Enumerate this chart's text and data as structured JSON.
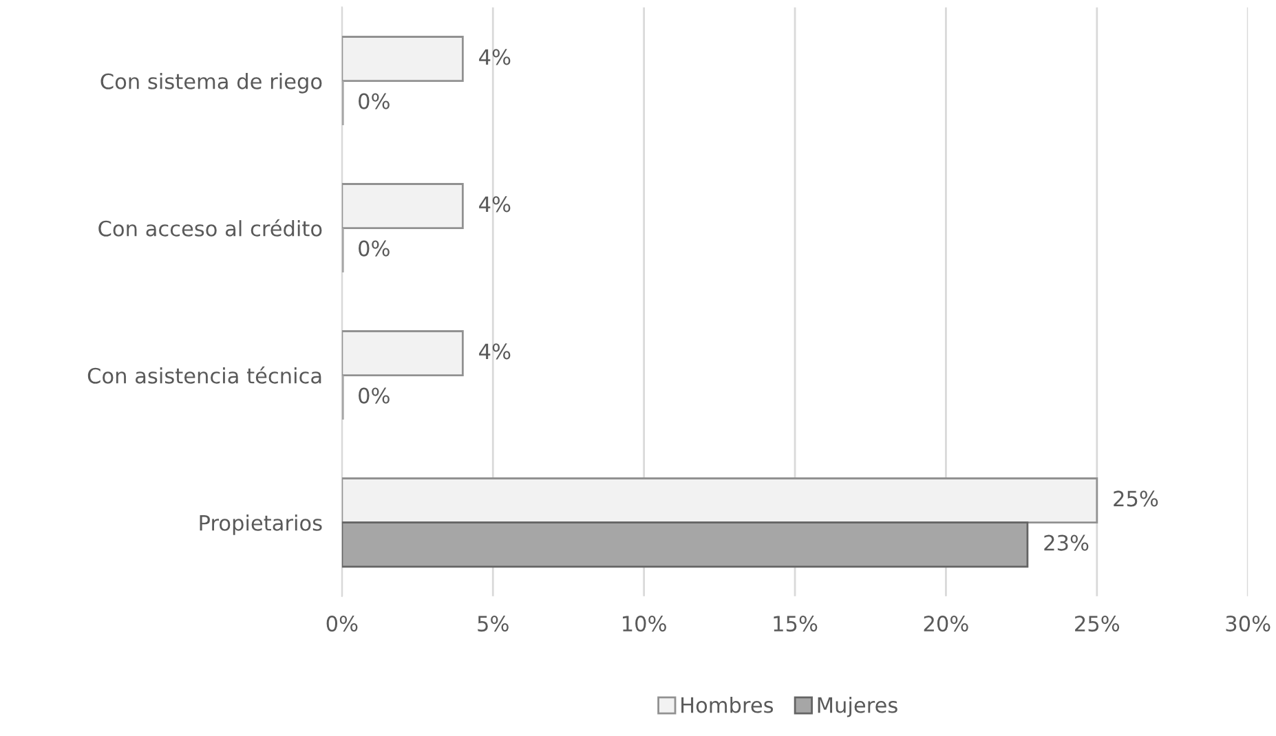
{
  "chart_data": {
    "type": "bar",
    "orientation": "horizontal",
    "categories": [
      "Con sistema de riego",
      "Con acceso al crédito",
      "Con asistencia técnica",
      "Propietarios"
    ],
    "series": [
      {
        "name": "Hombres",
        "color": "#f2f2f2",
        "values": [
          4,
          4,
          4,
          25
        ],
        "value_labels": [
          "4%",
          "4%",
          "4%",
          "25%"
        ]
      },
      {
        "name": "Mujeres",
        "color": "#a6a6a6",
        "values": [
          0,
          0,
          0,
          22.7
        ],
        "value_labels": [
          "0%",
          "0%",
          "0%",
          "23%"
        ]
      }
    ],
    "xlim": [
      0,
      30
    ],
    "xticks": [
      {
        "value": 0,
        "label": "0%"
      },
      {
        "value": 5,
        "label": "5%"
      },
      {
        "value": 10,
        "label": "10%"
      },
      {
        "value": 15,
        "label": "15%"
      },
      {
        "value": 20,
        "label": "20%"
      },
      {
        "value": 25,
        "label": "25%"
      },
      {
        "value": 30,
        "label": "30%"
      }
    ],
    "grid": "x",
    "legend": "bottom"
  }
}
